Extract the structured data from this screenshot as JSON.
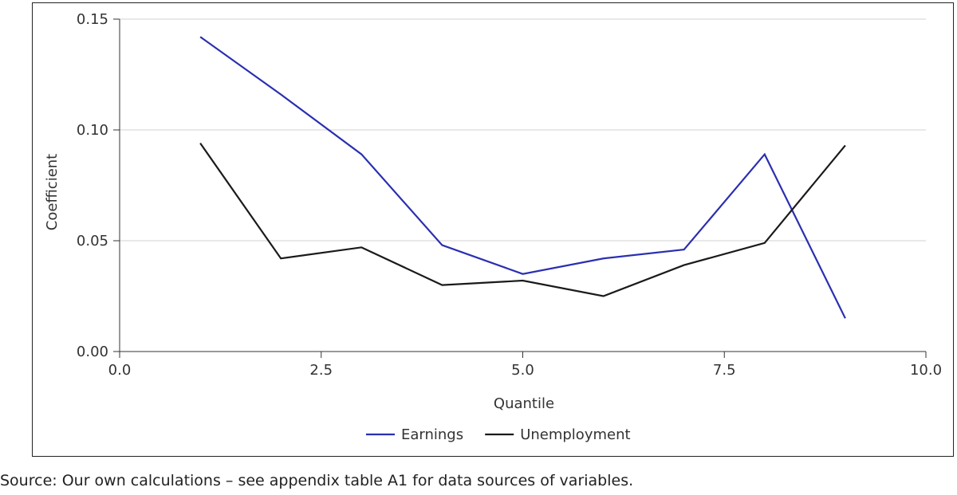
{
  "chart_data": {
    "type": "line",
    "xlabel": "Quantile",
    "ylabel": "Coefficient",
    "xlim": [
      0,
      10
    ],
    "ylim": [
      0,
      0.15
    ],
    "x_ticks": [
      0,
      2.5,
      5,
      7.5,
      10
    ],
    "x_tick_labels": [
      "0.0",
      "2.5",
      "5.0",
      "7.5",
      "10.0"
    ],
    "y_ticks": [
      0,
      0.05,
      0.1,
      0.15
    ],
    "y_tick_labels": [
      "0.00",
      "0.05",
      "0.10",
      "0.15"
    ],
    "grid": "horizontal",
    "legend_position": "bottom",
    "x": [
      1,
      2,
      3,
      4,
      5,
      6,
      7,
      8,
      9
    ],
    "series": [
      {
        "name": "Earnings",
        "color": "#2a2fb0",
        "values": [
          0.142,
          0.116,
          0.089,
          0.048,
          0.035,
          0.042,
          0.046,
          0.089,
          0.015
        ]
      },
      {
        "name": "Unemployment",
        "color": "#1a1a1a",
        "values": [
          0.094,
          0.042,
          0.047,
          0.03,
          0.032,
          0.025,
          0.039,
          0.049,
          0.093
        ]
      }
    ]
  },
  "source_note": "Source: Our own calculations – see appendix table A1 for data sources of variables."
}
